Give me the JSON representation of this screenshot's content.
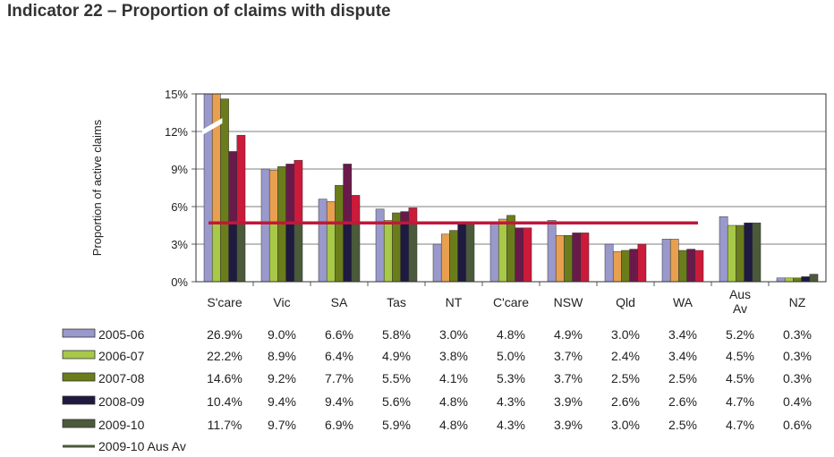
{
  "page": {
    "title": "Indicator 22 – Proportion of claims with dispute"
  },
  "chart_data": {
    "type": "bar",
    "title": "",
    "ylabel": "Proportion of active claims",
    "xlabel": "",
    "ylim": [
      0,
      15
    ],
    "yticks": [
      {
        "value": 0,
        "label": "0%"
      },
      {
        "value": 3,
        "label": "3%"
      },
      {
        "value": 6,
        "label": "6%"
      },
      {
        "value": 9,
        "label": "9%"
      },
      {
        "value": 12,
        "label": "12%"
      },
      {
        "value": 15,
        "label": "15%"
      }
    ],
    "axis_break": true,
    "grid": true,
    "categories": [
      "S'care",
      "Vic",
      "SA",
      "Tas",
      "NT",
      "C'care",
      "NSW",
      "Qld",
      "WA",
      "Aus Av",
      "NZ"
    ],
    "category_labels": [
      [
        "S'care"
      ],
      [
        "Vic"
      ],
      [
        "SA"
      ],
      [
        "Tas"
      ],
      [
        "NT"
      ],
      [
        "C'care"
      ],
      [
        "NSW"
      ],
      [
        "Qld"
      ],
      [
        "WA"
      ],
      [
        "Aus",
        "Av"
      ],
      [
        "NZ"
      ]
    ],
    "series": [
      {
        "name": "2005-06",
        "color": "#9999cc",
        "values": [
          26.9,
          9.0,
          6.6,
          5.8,
          3.0,
          4.8,
          4.9,
          3.0,
          3.4,
          5.2,
          0.3
        ],
        "table": [
          "26.9%",
          "9.0%",
          "6.6%",
          "5.8%",
          "3.0%",
          "4.8%",
          "4.9%",
          "3.0%",
          "3.4%",
          "5.2%",
          "0.3%"
        ]
      },
      {
        "name": "2006-07",
        "color": "#e8a050",
        "bottom_color": "#a8c848",
        "values": [
          22.2,
          8.9,
          6.4,
          4.9,
          3.8,
          5.0,
          3.7,
          2.4,
          3.4,
          4.5,
          0.3
        ],
        "table": [
          "22.2%",
          "8.9%",
          "6.4%",
          "4.9%",
          "3.8%",
          "5.0%",
          "3.7%",
          "2.4%",
          "3.4%",
          "4.5%",
          "0.3%"
        ]
      },
      {
        "name": "2007-08",
        "color": "#6b7d1a",
        "values": [
          14.6,
          9.2,
          7.7,
          5.5,
          4.1,
          5.3,
          3.7,
          2.5,
          2.5,
          4.5,
          0.3
        ],
        "table": [
          "14.6%",
          "9.2%",
          "7.7%",
          "5.5%",
          "4.1%",
          "5.3%",
          "3.7%",
          "2.5%",
          "2.5%",
          "4.5%",
          "0.3%"
        ]
      },
      {
        "name": "2008-09",
        "color": "#6a1a4a",
        "bottom_color": "#1e1a40",
        "values": [
          10.4,
          9.4,
          9.4,
          5.6,
          4.8,
          4.3,
          3.9,
          2.6,
          2.6,
          4.7,
          0.4
        ],
        "table": [
          "10.4%",
          "9.4%",
          "9.4%",
          "5.6%",
          "4.8%",
          "4.3%",
          "3.9%",
          "2.6%",
          "2.6%",
          "4.7%",
          "0.4%"
        ]
      },
      {
        "name": "2009-10",
        "color": "#cc1a3a",
        "bottom_color": "#4a5a3a",
        "values": [
          11.7,
          9.7,
          6.9,
          5.9,
          4.8,
          4.3,
          3.9,
          3.0,
          2.5,
          4.7,
          0.6
        ],
        "table": [
          "11.7%",
          "9.7%",
          "6.9%",
          "5.9%",
          "4.8%",
          "4.3%",
          "3.9%",
          "3.0%",
          "2.5%",
          "4.7%",
          "0.6%"
        ]
      }
    ],
    "reference_line": {
      "name": "2009-10 Aus Av",
      "value": 4.7,
      "color": "#c0183a",
      "legend_color": "#4a5a3a",
      "from_category": "S'care",
      "to_category": "WA"
    },
    "legend_placement": "bottom-left"
  }
}
